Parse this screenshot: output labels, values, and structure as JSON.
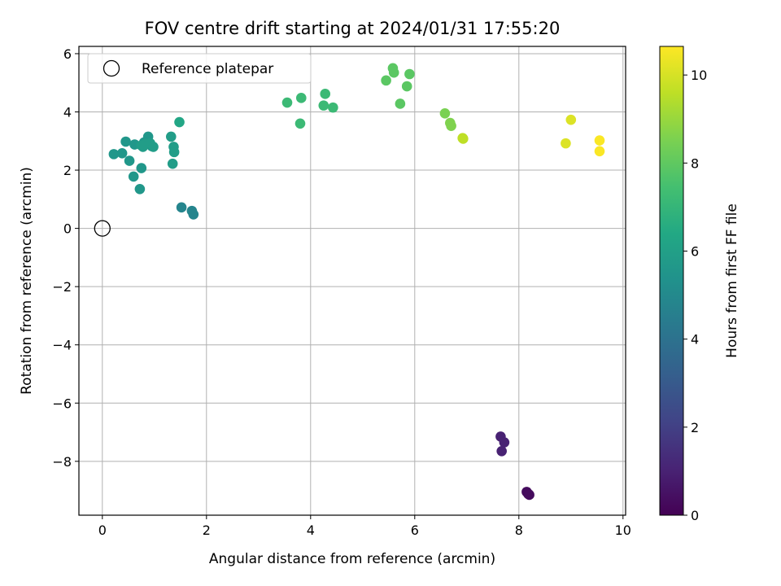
{
  "chart_data": {
    "type": "scatter",
    "title": "FOV centre drift starting at 2024/01/31 17:55:20",
    "xlabel": "Angular distance from reference (arcmin)",
    "ylabel": "Rotation from reference (arcmin)",
    "xlim": [
      -0.45,
      10.05
    ],
    "ylim": [
      -9.85,
      6.25
    ],
    "xticks": [
      0,
      2,
      4,
      6,
      8,
      10
    ],
    "xtick_labels": [
      "0",
      "2",
      "4",
      "6",
      "8",
      "10"
    ],
    "yticks": [
      -8,
      -6,
      -4,
      -2,
      0,
      2,
      4,
      6
    ],
    "ytick_labels": [
      "−8",
      "−6",
      "−4",
      "−2",
      "0",
      "2",
      "4",
      "6"
    ],
    "grid": true,
    "legend": {
      "placement": "upper-left",
      "label": "Reference platepar"
    },
    "reference_point": {
      "x": 0,
      "y": 0
    },
    "colorbar": {
      "label": "Hours from first FF file",
      "colormap": "viridis",
      "range": [
        0,
        10.65
      ],
      "ticks": [
        0,
        2,
        4,
        6,
        8,
        10
      ],
      "tick_labels": [
        "0",
        "2",
        "4",
        "6",
        "8",
        "10"
      ]
    },
    "series": [
      {
        "x": [
          8.15,
          8.18,
          8.2,
          7.65,
          7.72,
          7.67,
          1.52,
          1.72,
          1.75,
          0.72,
          0.52,
          0.6,
          0.75,
          0.95,
          0.88,
          0.8,
          0.62,
          0.45,
          0.38,
          0.22,
          0.78,
          0.83,
          0.75,
          0.92,
          0.98,
          1.32,
          1.37,
          1.38,
          1.35,
          1.48,
          3.55,
          3.8,
          3.82,
          4.25,
          4.28,
          4.43,
          5.45,
          5.58,
          5.6,
          5.72,
          5.85,
          5.9,
          6.58,
          6.68,
          6.7,
          6.92,
          6.93,
          8.9,
          9.0,
          9.55,
          9.55
        ],
        "y": [
          -9.05,
          -9.12,
          -9.15,
          -7.15,
          -7.35,
          -7.65,
          0.72,
          0.6,
          0.48,
          1.35,
          2.32,
          1.78,
          2.07,
          2.82,
          3.15,
          2.95,
          2.88,
          2.98,
          2.58,
          2.55,
          2.8,
          2.9,
          2.85,
          2.92,
          2.8,
          3.15,
          2.8,
          2.62,
          2.22,
          3.65,
          4.32,
          3.6,
          4.48,
          4.22,
          4.62,
          4.15,
          5.08,
          5.5,
          5.35,
          4.28,
          4.88,
          5.3,
          3.95,
          3.62,
          3.52,
          3.1,
          3.08,
          2.92,
          3.73,
          3.02,
          2.65
        ],
        "hours": [
          0.3,
          0.3,
          0.3,
          1.0,
          1.0,
          1.0,
          4.8,
          4.8,
          4.8,
          5.6,
          5.6,
          5.6,
          5.6,
          5.6,
          5.6,
          5.6,
          5.6,
          5.6,
          5.6,
          5.6,
          5.9,
          5.9,
          5.9,
          5.9,
          5.9,
          5.9,
          5.9,
          5.9,
          5.9,
          6.3,
          7.2,
          7.2,
          7.2,
          7.2,
          7.2,
          7.2,
          7.9,
          7.9,
          7.9,
          7.9,
          7.9,
          7.9,
          8.5,
          8.6,
          8.6,
          9.6,
          9.6,
          10.1,
          10.1,
          10.6,
          10.6
        ]
      }
    ]
  }
}
